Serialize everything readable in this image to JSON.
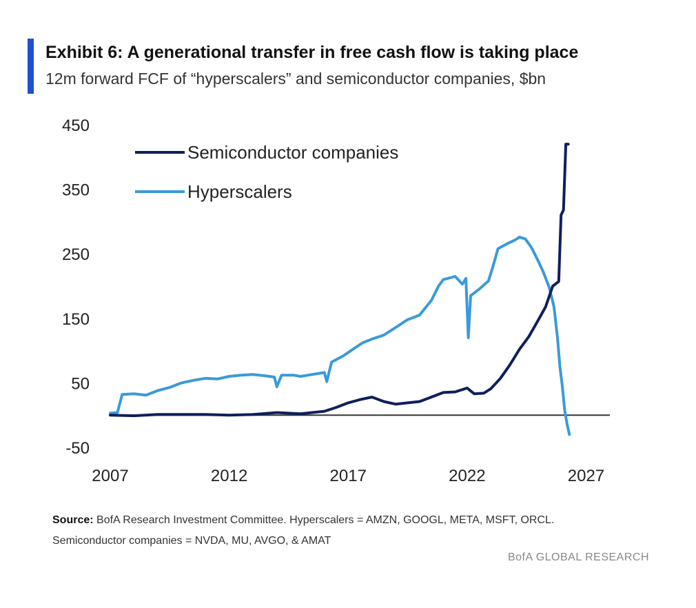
{
  "header": {
    "title": "Exhibit 6: A generational transfer in free cash flow is taking place",
    "subtitle": "12m forward FCF of “hyperscalers” and semiconductor companies, $bn",
    "accent_color": "#1f4fd1"
  },
  "footer": {
    "source_label": "Source:",
    "source_line1": "BofA Research Investment Committee. Hyperscalers = AMZN, GOOGL, META, MSFT, ORCL.",
    "source_line2": "Semiconductor companies = NVDA, MU, AVGO, & AMAT",
    "brand": "BofA GLOBAL RESEARCH"
  },
  "chart_data": {
    "type": "line",
    "title": "Exhibit 6: A generational transfer in free cash flow is taking place",
    "subtitle": "12m forward FCF of “hyperscalers” and semiconductor companies, $bn",
    "xlabel": "",
    "ylabel": "",
    "xlim": [
      2007,
      2028
    ],
    "ylim": [
      -50,
      450
    ],
    "x_ticks": [
      2007,
      2012,
      2017,
      2022,
      2027
    ],
    "y_ticks": [
      -50,
      50,
      150,
      250,
      350,
      450
    ],
    "grid": false,
    "zero_line": true,
    "legend_position": "top-left",
    "series": [
      {
        "name": "Semiconductor companies",
        "color": "#0f1f5c",
        "points": [
          [
            2007.0,
            0
          ],
          [
            2008.0,
            -1
          ],
          [
            2009.0,
            1
          ],
          [
            2010.0,
            1
          ],
          [
            2011.0,
            1
          ],
          [
            2012.0,
            0
          ],
          [
            2013.0,
            1
          ],
          [
            2014.0,
            4
          ],
          [
            2015.0,
            2
          ],
          [
            2016.0,
            6
          ],
          [
            2016.5,
            12
          ],
          [
            2017.0,
            19
          ],
          [
            2017.5,
            24
          ],
          [
            2018.0,
            28
          ],
          [
            2018.5,
            21
          ],
          [
            2019.0,
            17
          ],
          [
            2019.5,
            19
          ],
          [
            2020.0,
            21
          ],
          [
            2020.5,
            28
          ],
          [
            2021.0,
            35
          ],
          [
            2021.5,
            36
          ],
          [
            2022.0,
            42
          ],
          [
            2022.3,
            33
          ],
          [
            2022.7,
            34
          ],
          [
            2023.0,
            41
          ],
          [
            2023.4,
            57
          ],
          [
            2023.8,
            78
          ],
          [
            2024.2,
            102
          ],
          [
            2024.6,
            122
          ],
          [
            2025.0,
            148
          ],
          [
            2025.3,
            168
          ],
          [
            2025.6,
            200
          ],
          [
            2025.85,
            207
          ],
          [
            2025.95,
            310
          ],
          [
            2026.05,
            318
          ],
          [
            2026.15,
            420
          ],
          [
            2026.25,
            420
          ]
        ]
      },
      {
        "name": "Hyperscalers",
        "color": "#3a9ad9",
        "points": [
          [
            2007.0,
            3
          ],
          [
            2007.3,
            4
          ],
          [
            2007.5,
            32
          ],
          [
            2008.0,
            33
          ],
          [
            2008.5,
            31
          ],
          [
            2009.0,
            38
          ],
          [
            2009.5,
            43
          ],
          [
            2010.0,
            50
          ],
          [
            2010.5,
            54
          ],
          [
            2011.0,
            57
          ],
          [
            2011.5,
            56
          ],
          [
            2012.0,
            60
          ],
          [
            2012.5,
            62
          ],
          [
            2013.0,
            63
          ],
          [
            2013.5,
            61
          ],
          [
            2013.9,
            59
          ],
          [
            2014.0,
            44
          ],
          [
            2014.2,
            62
          ],
          [
            2014.7,
            62
          ],
          [
            2015.0,
            60
          ],
          [
            2015.5,
            63
          ],
          [
            2016.0,
            66
          ],
          [
            2016.1,
            52
          ],
          [
            2016.3,
            82
          ],
          [
            2016.8,
            92
          ],
          [
            2017.2,
            102
          ],
          [
            2017.6,
            112
          ],
          [
            2018.0,
            118
          ],
          [
            2018.5,
            124
          ],
          [
            2019.0,
            136
          ],
          [
            2019.5,
            148
          ],
          [
            2020.0,
            155
          ],
          [
            2020.5,
            178
          ],
          [
            2020.8,
            200
          ],
          [
            2021.0,
            210
          ],
          [
            2021.5,
            215
          ],
          [
            2021.8,
            203
          ],
          [
            2021.95,
            212
          ],
          [
            2022.05,
            120
          ],
          [
            2022.15,
            185
          ],
          [
            2022.5,
            195
          ],
          [
            2022.9,
            208
          ],
          [
            2023.1,
            232
          ],
          [
            2023.3,
            258
          ],
          [
            2023.7,
            266
          ],
          [
            2024.0,
            271
          ],
          [
            2024.2,
            276
          ],
          [
            2024.45,
            273
          ],
          [
            2024.7,
            260
          ],
          [
            2025.0,
            238
          ],
          [
            2025.2,
            222
          ],
          [
            2025.45,
            198
          ],
          [
            2025.65,
            168
          ],
          [
            2025.8,
            120
          ],
          [
            2025.9,
            75
          ],
          [
            2026.0,
            45
          ],
          [
            2026.1,
            8
          ],
          [
            2026.2,
            -14
          ],
          [
            2026.3,
            -30
          ]
        ]
      }
    ]
  }
}
